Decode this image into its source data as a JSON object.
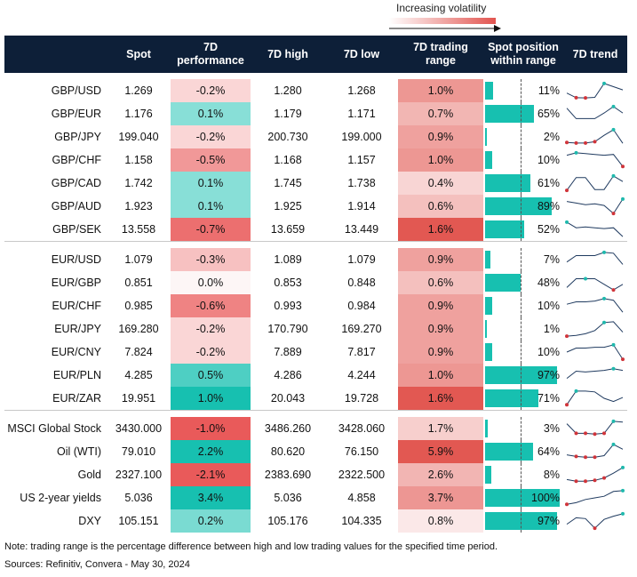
{
  "legend": {
    "label": "Increasing volatility"
  },
  "headers": {
    "asset": "",
    "spot": "Spot",
    "perf_l1": "7D",
    "perf_l2": "performance",
    "high": "7D high",
    "low": "7D low",
    "range_l1": "7D trading",
    "range_l2": "range",
    "pos_l1": "Spot position",
    "pos_l2": "within range",
    "trend": "7D trend"
  },
  "colors": {
    "header_bg": "#0d1f38",
    "position_bar": "#17c0b0",
    "trend_line": "#1f3a5f",
    "trend_low_marker": "#d0343a",
    "trend_high_marker": "#1fb9ad"
  },
  "groups": [
    {
      "rows": [
        {
          "name": "GBP/USD",
          "spot": "1.269",
          "perf": "-0.2%",
          "perf_v": -0.2,
          "high": "1.280",
          "low": "1.268",
          "range": "1.0%",
          "range_v": 1.0,
          "pos": "11%",
          "pos_v": 0.11,
          "trend": [
            0.35,
            0.06,
            0.05,
            0.08,
            0.95,
            0.75,
            0.55
          ],
          "hi_i": 4,
          "lo_i": [
            1,
            2
          ]
        },
        {
          "name": "GBP/EUR",
          "spot": "1.176",
          "perf": "0.1%",
          "perf_v": 0.1,
          "high": "1.179",
          "low": "1.171",
          "range": "0.7%",
          "range_v": 0.7,
          "pos": "65%",
          "pos_v": 0.65,
          "trend": [
            0.85,
            0.2,
            0.2,
            0.2,
            0.55,
            0.95,
            0.55
          ],
          "hi_i": 5,
          "lo_i": []
        },
        {
          "name": "GBP/JPY",
          "spot": "199.040",
          "perf": "-0.2%",
          "perf_v": -0.2,
          "high": "200.730",
          "low": "199.000",
          "range": "0.9%",
          "range_v": 0.9,
          "pos": "2%",
          "pos_v": 0.02,
          "trend": [
            0.15,
            0.12,
            0.12,
            0.2,
            0.6,
            0.95,
            0.1
          ],
          "hi_i": 5,
          "lo_i": [
            0,
            1,
            2,
            3
          ]
        },
        {
          "name": "GBP/CHF",
          "spot": "1.158",
          "perf": "-0.5%",
          "perf_v": -0.5,
          "high": "1.168",
          "low": "1.157",
          "range": "1.0%",
          "range_v": 1.0,
          "pos": "10%",
          "pos_v": 0.1,
          "trend": [
            0.8,
            0.95,
            0.9,
            0.85,
            0.8,
            0.85,
            0.1
          ],
          "hi_i": 1,
          "lo_i": [
            6
          ]
        },
        {
          "name": "GBP/CAD",
          "spot": "1.742",
          "perf": "0.1%",
          "perf_v": 0.1,
          "high": "1.745",
          "low": "1.738",
          "range": "0.4%",
          "range_v": 0.4,
          "pos": "61%",
          "pos_v": 0.61,
          "trend": [
            0.05,
            0.85,
            0.85,
            0.1,
            0.1,
            0.95,
            0.6
          ],
          "hi_i": 5,
          "lo_i": [
            0
          ]
        },
        {
          "name": "GBP/AUD",
          "spot": "1.923",
          "perf": "0.1%",
          "perf_v": 0.1,
          "high": "1.925",
          "low": "1.914",
          "range": "0.6%",
          "range_v": 0.6,
          "pos": "89%",
          "pos_v": 0.89,
          "trend": [
            0.8,
            0.7,
            0.6,
            0.65,
            0.55,
            0.05,
            0.95
          ],
          "hi_i": 6,
          "lo_i": [
            5
          ]
        },
        {
          "name": "GBP/SEK",
          "spot": "13.558",
          "perf": "-0.7%",
          "perf_v": -0.7,
          "high": "13.659",
          "low": "13.449",
          "range": "1.6%",
          "range_v": 1.6,
          "pos": "52%",
          "pos_v": 0.52,
          "trend": [
            0.95,
            0.6,
            0.65,
            0.6,
            0.55,
            0.6,
            0.05
          ],
          "hi_i": 0,
          "lo_i": []
        }
      ]
    },
    {
      "rows": [
        {
          "name": "EUR/USD",
          "spot": "1.079",
          "perf": "-0.3%",
          "perf_v": -0.3,
          "high": "1.089",
          "low": "1.079",
          "range": "0.9%",
          "range_v": 0.9,
          "pos": "7%",
          "pos_v": 0.07,
          "trend": [
            0.35,
            0.75,
            0.75,
            0.75,
            0.95,
            0.9,
            0.2
          ],
          "hi_i": 4,
          "lo_i": []
        },
        {
          "name": "EUR/GBP",
          "spot": "0.851",
          "perf": "0.0%",
          "perf_v": 0.0,
          "high": "0.853",
          "low": "0.848",
          "range": "0.6%",
          "range_v": 0.6,
          "pos": "48%",
          "pos_v": 0.48,
          "trend": [
            0.2,
            0.75,
            0.75,
            0.75,
            0.4,
            0.05,
            0.4
          ],
          "hi_i": 2,
          "lo_i": [
            5
          ]
        },
        {
          "name": "EUR/CHF",
          "spot": "0.985",
          "perf": "-0.6%",
          "perf_v": -0.6,
          "high": "0.993",
          "low": "0.984",
          "range": "0.9%",
          "range_v": 0.9,
          "pos": "10%",
          "pos_v": 0.1,
          "trend": [
            0.6,
            0.75,
            0.75,
            0.8,
            0.95,
            0.85,
            0.1
          ],
          "hi_i": 4,
          "lo_i": []
        },
        {
          "name": "EUR/JPY",
          "spot": "169.280",
          "perf": "-0.2%",
          "perf_v": -0.2,
          "high": "170.790",
          "low": "169.270",
          "range": "0.9%",
          "range_v": 0.9,
          "pos": "1%",
          "pos_v": 0.01,
          "trend": [
            0.05,
            0.1,
            0.2,
            0.4,
            0.9,
            0.95,
            0.3
          ],
          "hi_i": 4,
          "lo_i": [
            0
          ]
        },
        {
          "name": "EUR/CNY",
          "spot": "7.824",
          "perf": "-0.2%",
          "perf_v": -0.2,
          "high": "7.889",
          "low": "7.817",
          "range": "0.9%",
          "range_v": 0.9,
          "pos": "10%",
          "pos_v": 0.1,
          "trend": [
            0.5,
            0.75,
            0.75,
            0.8,
            0.8,
            0.95,
            0.05
          ],
          "hi_i": 5,
          "lo_i": [
            6
          ]
        },
        {
          "name": "EUR/PLN",
          "spot": "4.285",
          "perf": "0.5%",
          "perf_v": 0.5,
          "high": "4.286",
          "low": "4.244",
          "range": "1.0%",
          "range_v": 1.0,
          "pos": "97%",
          "pos_v": 0.97,
          "trend": [
            0.3,
            0.75,
            0.7,
            0.75,
            0.8,
            0.9,
            0.8
          ],
          "hi_i": 5,
          "lo_i": []
        },
        {
          "name": "EUR/ZAR",
          "spot": "19.951",
          "perf": "1.0%",
          "perf_v": 1.0,
          "high": "20.043",
          "low": "19.728",
          "range": "1.6%",
          "range_v": 1.6,
          "pos": "71%",
          "pos_v": 0.71,
          "trend": [
            0.1,
            0.95,
            0.95,
            0.9,
            0.5,
            0.3,
            0.55
          ],
          "hi_i": 1,
          "lo_i": [
            0
          ]
        }
      ]
    },
    {
      "rows": [
        {
          "name": "MSCI Global Stock",
          "spot": "3430.000",
          "perf": "-1.0%",
          "perf_v": -1.0,
          "high": "3486.260",
          "low": "3428.060",
          "range": "1.7%",
          "range_v": 1.7,
          "pos": "3%",
          "pos_v": 0.03,
          "trend": [
            0.8,
            0.2,
            0.2,
            0.15,
            0.2,
            0.95,
            0.9
          ],
          "hi_i": 5,
          "lo_i": [
            1,
            2,
            3,
            4
          ]
        },
        {
          "name": "Oil (WTI)",
          "spot": "79.010",
          "perf": "2.2%",
          "perf_v": 2.2,
          "high": "80.620",
          "low": "76.150",
          "range": "5.9%",
          "range_v": 5.9,
          "pos": "64%",
          "pos_v": 0.64,
          "trend": [
            0.3,
            0.2,
            0.15,
            0.15,
            0.25,
            0.95,
            0.65
          ],
          "hi_i": 5,
          "lo_i": [
            1,
            2,
            3
          ]
        },
        {
          "name": "Gold",
          "spot": "2327.100",
          "perf": "-2.1%",
          "perf_v": -2.1,
          "high": "2383.690",
          "low": "2322.500",
          "range": "2.6%",
          "range_v": 2.6,
          "pos": "8%",
          "pos_v": 0.08,
          "trend": [
            0.2,
            0.1,
            0.1,
            0.15,
            0.3,
            0.6,
            0.95
          ],
          "hi_i": 6,
          "lo_i": [
            1,
            2,
            3,
            4
          ]
        },
        {
          "name": "US 2-year yields",
          "spot": "5.036",
          "perf": "3.4%",
          "perf_v": 3.4,
          "high": "5.036",
          "low": "4.858",
          "range": "3.7%",
          "range_v": 3.7,
          "pos": "100%",
          "pos_v": 1.0,
          "trend": [
            0.1,
            0.2,
            0.4,
            0.5,
            0.6,
            0.9,
            0.95
          ],
          "hi_i": 6,
          "lo_i": [
            0
          ]
        },
        {
          "name": "DXY",
          "spot": "105.151",
          "perf": "0.2%",
          "perf_v": 0.2,
          "high": "105.176",
          "low": "104.335",
          "range": "0.8%",
          "range_v": 0.8,
          "pos": "97%",
          "pos_v": 0.97,
          "trend": [
            0.3,
            0.7,
            0.65,
            0.05,
            0.6,
            0.8,
            0.95
          ],
          "hi_i": 6,
          "lo_i": [
            3
          ]
        }
      ]
    }
  ],
  "footer": {
    "note": "Note: trading range is the percentage difference between high and low trading values for the specified time period.",
    "sources": "Sources: Refinitiv, Convera - May 30, 2024"
  }
}
